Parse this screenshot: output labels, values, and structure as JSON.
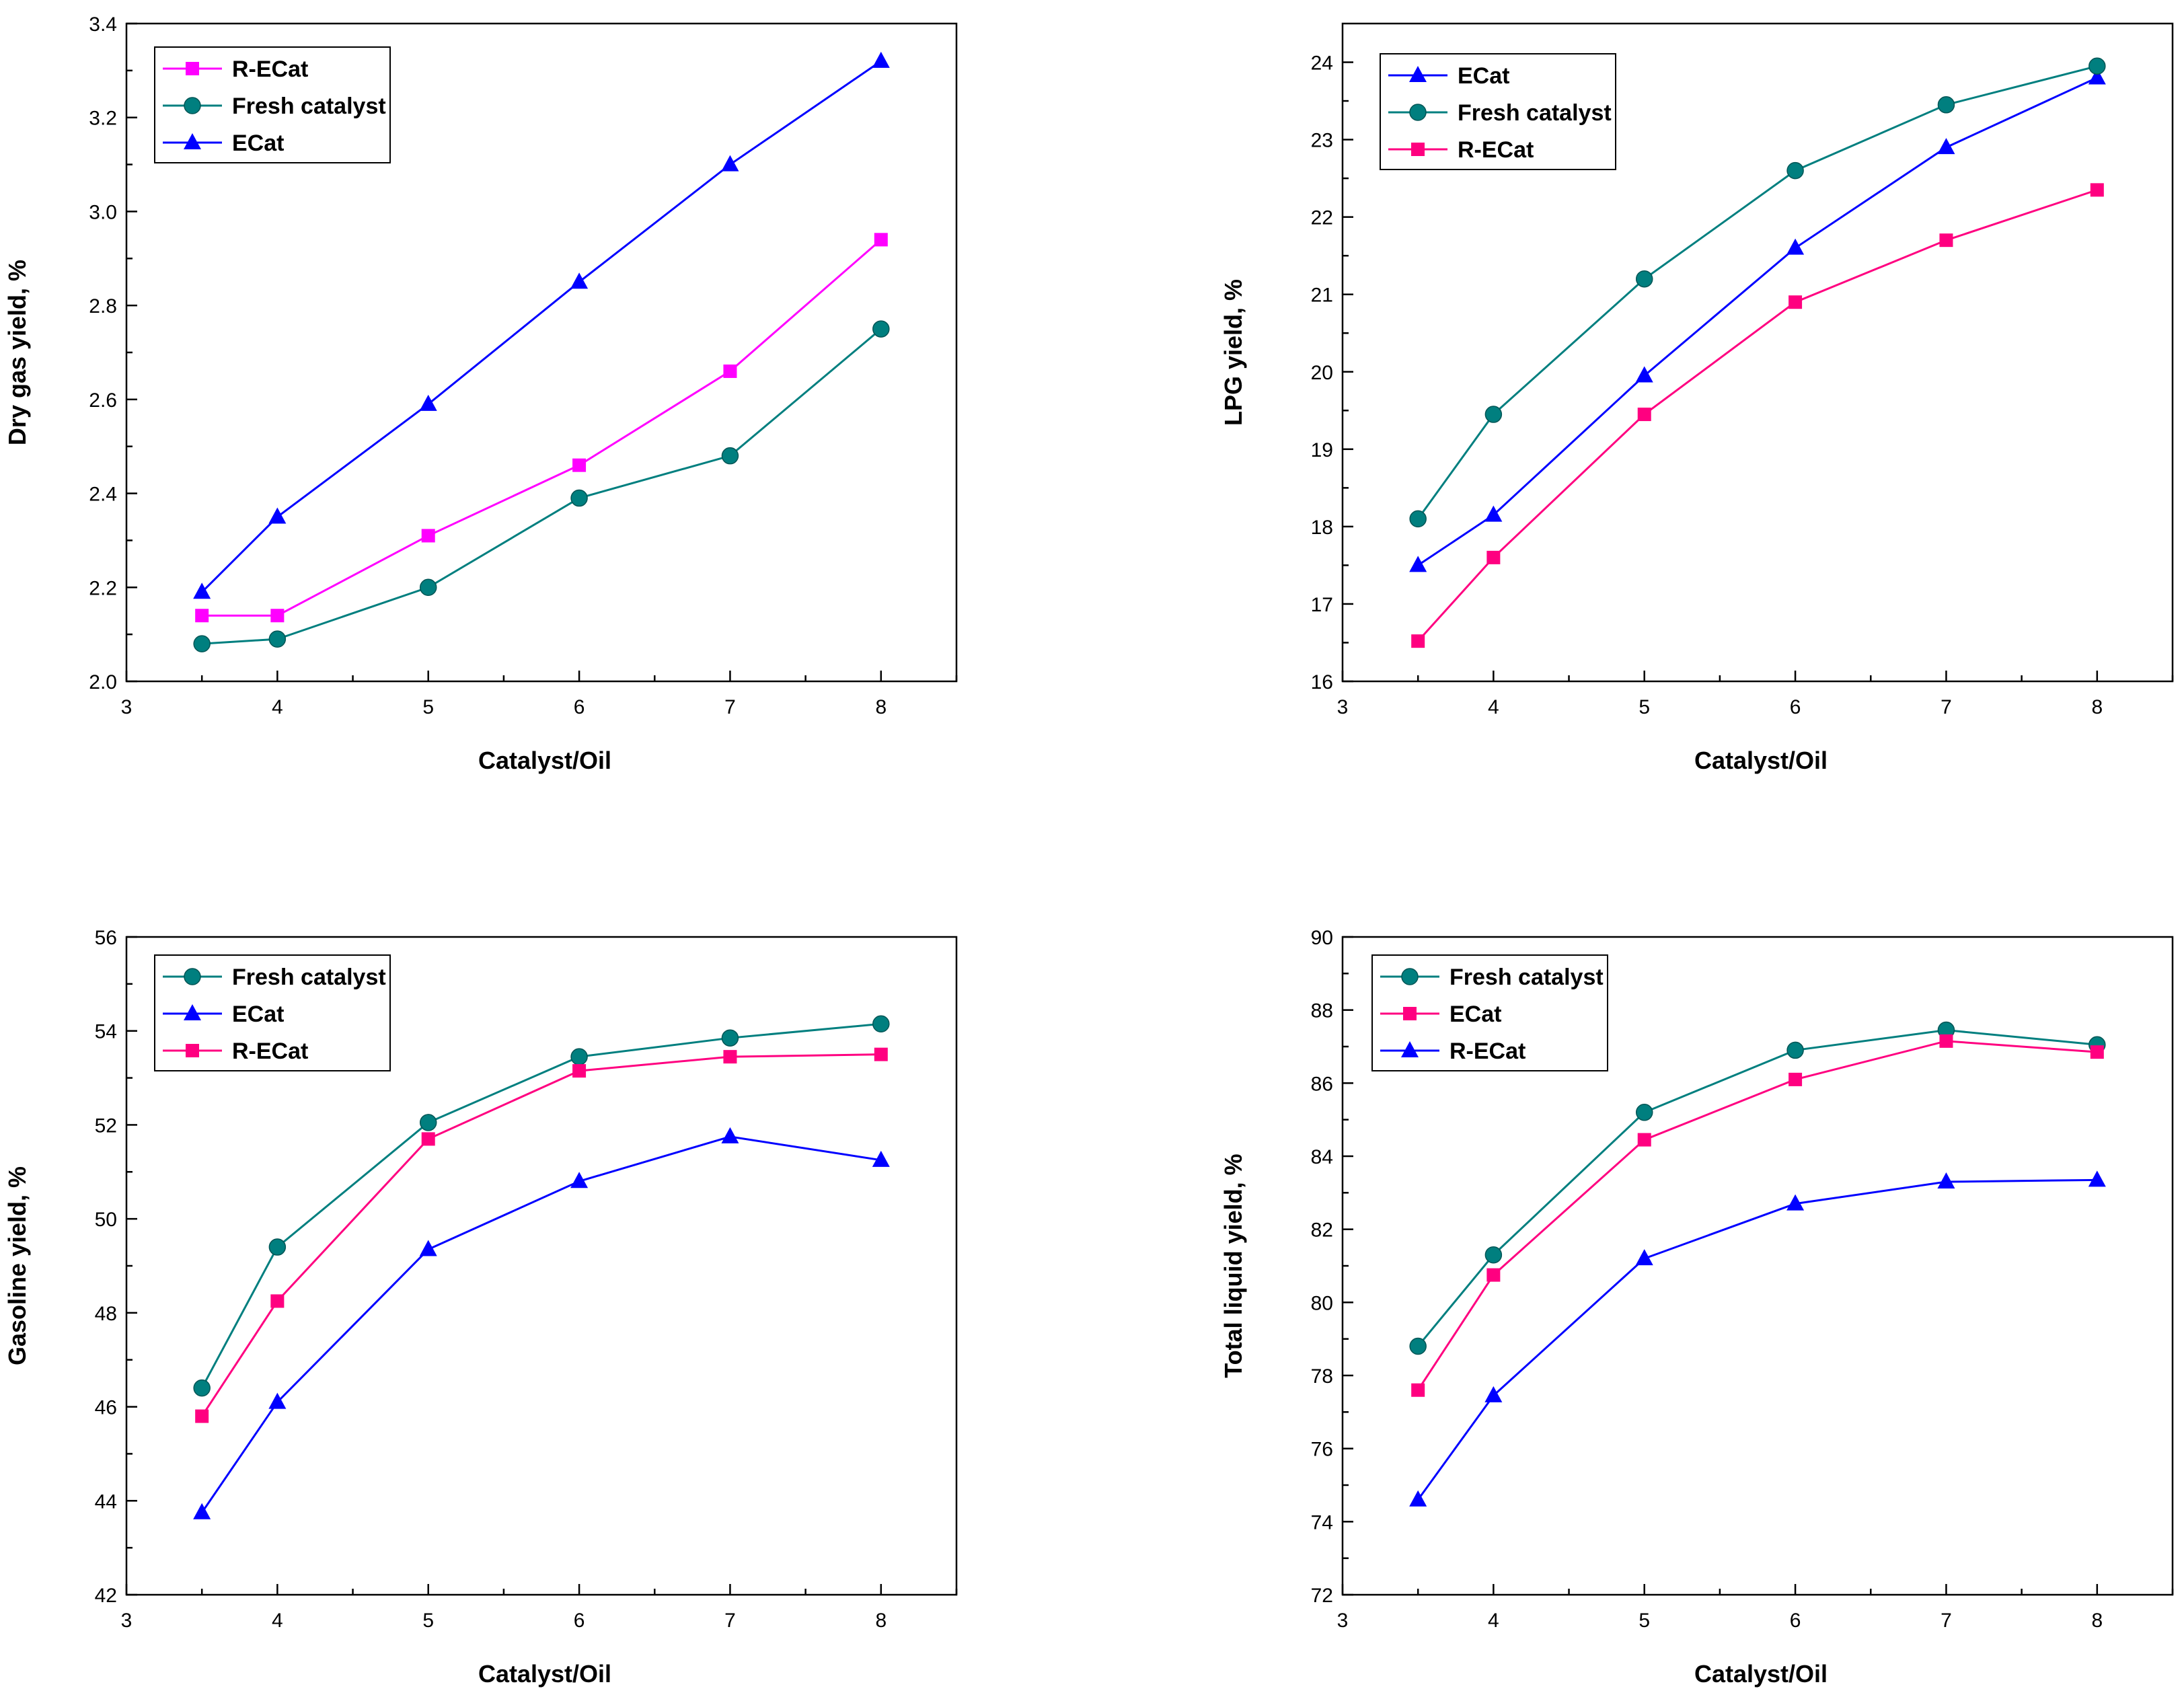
{
  "chart_data": [
    {
      "type": "line",
      "title": "",
      "xlabel": "Catalyst/Oil",
      "ylabel": "Dry gas yield, %",
      "xlim": [
        3,
        8.5
      ],
      "ylim": [
        2.0,
        3.4
      ],
      "xticks": [
        3,
        4,
        5,
        6,
        7,
        8
      ],
      "xtick_labels": [
        "3",
        "4",
        "5",
        "6",
        "7",
        "8"
      ],
      "yticks": [
        2.0,
        2.2,
        2.4,
        2.6,
        2.8,
        3.0,
        3.2,
        3.4
      ],
      "ytick_labels": [
        "2.0",
        "2.2",
        "2.4",
        "2.6",
        "2.8",
        "3.0",
        "3.2",
        "3.4"
      ],
      "x": [
        3.5,
        4,
        5,
        6,
        7,
        8
      ],
      "legend_position": "top-left",
      "series": [
        {
          "name": "R-ECat",
          "marker": "square",
          "color": "#ff00ff",
          "values": [
            2.14,
            2.14,
            2.31,
            2.46,
            2.66,
            2.94
          ]
        },
        {
          "name": "Fresh catalyst",
          "marker": "circle",
          "color": "#007f7f",
          "values": [
            2.08,
            2.09,
            2.2,
            2.39,
            2.48,
            2.75
          ]
        },
        {
          "name": "ECat",
          "marker": "triangle",
          "color": "#0000ff",
          "values": [
            2.19,
            2.35,
            2.59,
            2.85,
            3.1,
            3.32
          ]
        }
      ]
    },
    {
      "type": "line",
      "title": "",
      "xlabel": "Catalyst/Oil",
      "ylabel": "LPG yield, %",
      "xlim": [
        3,
        8.5
      ],
      "ylim": [
        16,
        24.5
      ],
      "xticks": [
        3,
        4,
        5,
        6,
        7,
        8
      ],
      "xtick_labels": [
        "3",
        "4",
        "5",
        "6",
        "7",
        "8"
      ],
      "yticks": [
        16,
        17,
        18,
        19,
        20,
        21,
        22,
        23,
        24
      ],
      "ytick_labels": [
        "16",
        "17",
        "18",
        "19",
        "20",
        "21",
        "22",
        "23",
        "24"
      ],
      "x": [
        3.5,
        4,
        5,
        6,
        7,
        8
      ],
      "legend_position": "top-left",
      "series": [
        {
          "name": "ECat",
          "marker": "triangle",
          "color": "#0000ff",
          "values": [
            17.5,
            18.15,
            19.95,
            21.6,
            22.9,
            23.8
          ]
        },
        {
          "name": "Fresh catalyst",
          "marker": "circle",
          "color": "#007f7f",
          "values": [
            18.1,
            19.45,
            21.2,
            22.6,
            23.45,
            23.95
          ]
        },
        {
          "name": "R-ECat",
          "marker": "square",
          "color": "#ff0080",
          "values": [
            16.52,
            17.6,
            19.45,
            20.9,
            21.7,
            22.35
          ]
        }
      ]
    },
    {
      "type": "line",
      "title": "",
      "xlabel": "Catalyst/Oil",
      "ylabel": "Gasoline yield, %",
      "xlim": [
        3,
        8.5
      ],
      "ylim": [
        42,
        56
      ],
      "xticks": [
        3,
        4,
        5,
        6,
        7,
        8
      ],
      "xtick_labels": [
        "3",
        "4",
        "5",
        "6",
        "7",
        "8"
      ],
      "yticks": [
        42,
        44,
        46,
        48,
        50,
        52,
        54,
        56
      ],
      "ytick_labels": [
        "42",
        "44",
        "46",
        "48",
        "50",
        "52",
        "54",
        "56"
      ],
      "x": [
        3.5,
        4,
        5,
        6,
        7,
        8
      ],
      "legend_position": "top-left",
      "series": [
        {
          "name": "Fresh catalyst",
          "marker": "circle",
          "color": "#007f7f",
          "values": [
            46.4,
            49.4,
            52.05,
            53.45,
            53.85,
            54.15
          ]
        },
        {
          "name": "ECat",
          "marker": "triangle",
          "color": "#0000ff",
          "values": [
            43.75,
            46.1,
            49.35,
            50.8,
            51.75,
            51.25
          ]
        },
        {
          "name": "R-ECat",
          "marker": "square",
          "color": "#ff0080",
          "values": [
            45.8,
            48.25,
            51.7,
            53.15,
            53.45,
            53.5
          ]
        }
      ]
    },
    {
      "type": "line",
      "title": "",
      "xlabel": "Catalyst/Oil",
      "ylabel": "Total liquid yield, %",
      "xlim": [
        3,
        8.5
      ],
      "ylim": [
        72,
        90
      ],
      "xticks": [
        3,
        4,
        5,
        6,
        7,
        8
      ],
      "xtick_labels": [
        "3",
        "4",
        "5",
        "6",
        "7",
        "8"
      ],
      "yticks": [
        72,
        74,
        76,
        78,
        80,
        82,
        84,
        86,
        88,
        90
      ],
      "ytick_labels": [
        "72",
        "74",
        "76",
        "78",
        "80",
        "82",
        "84",
        "86",
        "88",
        "90"
      ],
      "x": [
        3.5,
        4,
        5,
        6,
        7,
        8
      ],
      "legend_position": "top-left",
      "series": [
        {
          "name": "Fresh catalyst",
          "marker": "circle",
          "color": "#007f7f",
          "values": [
            78.8,
            81.3,
            85.2,
            86.9,
            87.45,
            87.05
          ]
        },
        {
          "name": "ECat",
          "marker": "square",
          "color": "#ff0080",
          "values": [
            77.6,
            80.75,
            84.45,
            86.1,
            87.15,
            86.85
          ]
        },
        {
          "name": "R-ECat",
          "marker": "triangle",
          "color": "#0000ff",
          "values": [
            74.6,
            77.45,
            81.2,
            82.7,
            83.3,
            83.35
          ]
        }
      ]
    }
  ]
}
